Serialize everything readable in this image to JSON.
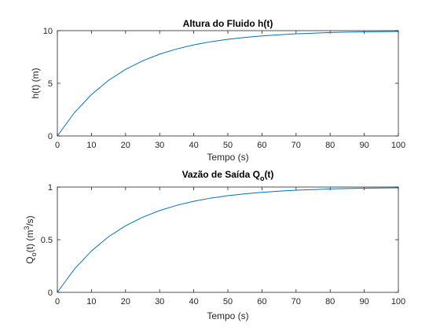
{
  "figure": {
    "line_color": "#0072BD",
    "axes_color": "#262626",
    "background": "#ffffff"
  },
  "chart_data": [
    {
      "type": "line",
      "title": "Altura do Fluido h(t)",
      "xlabel": "Tempo (s)",
      "ylabel": "h(t) (m)",
      "xlim": [
        0,
        100
      ],
      "ylim": [
        0,
        10
      ],
      "xticks": [
        0,
        10,
        20,
        30,
        40,
        50,
        60,
        70,
        80,
        90,
        100
      ],
      "yticks": [
        0,
        5,
        10
      ],
      "grid": false,
      "series": [
        {
          "x": [
            0,
            5,
            10,
            15,
            20,
            25,
            30,
            35,
            40,
            45,
            50,
            55,
            60,
            65,
            70,
            75,
            80,
            85,
            90,
            95,
            100
          ],
          "values": [
            0,
            2.21,
            3.93,
            5.28,
            6.32,
            7.13,
            7.77,
            8.26,
            8.65,
            8.95,
            9.18,
            9.36,
            9.5,
            9.61,
            9.7,
            9.76,
            9.82,
            9.86,
            9.89,
            9.91,
            9.93
          ]
        }
      ]
    },
    {
      "type": "line",
      "title": "Vazão de Saída Q",
      "title_sub": "o",
      "title_suffix": "(t)",
      "xlabel": "Tempo (s)",
      "ylabel": "Q",
      "ylabel_sub": "o",
      "ylabel_mid": "(t) (m",
      "ylabel_sup": "3",
      "ylabel_end": "/s)",
      "xlim": [
        0,
        100
      ],
      "ylim": [
        0,
        1
      ],
      "xticks": [
        0,
        10,
        20,
        30,
        40,
        50,
        60,
        70,
        80,
        90,
        100
      ],
      "yticks": [
        0,
        0.5,
        1
      ],
      "ytick_labels": [
        "0",
        "0.5",
        "1"
      ],
      "grid": false,
      "series": [
        {
          "x": [
            0,
            5,
            10,
            15,
            20,
            25,
            30,
            35,
            40,
            45,
            50,
            55,
            60,
            65,
            70,
            75,
            80,
            85,
            90,
            95,
            100
          ],
          "values": [
            0,
            0.221,
            0.393,
            0.528,
            0.632,
            0.713,
            0.777,
            0.826,
            0.865,
            0.895,
            0.918,
            0.936,
            0.95,
            0.961,
            0.97,
            0.976,
            0.982,
            0.986,
            0.989,
            0.991,
            0.993
          ]
        }
      ]
    }
  ]
}
